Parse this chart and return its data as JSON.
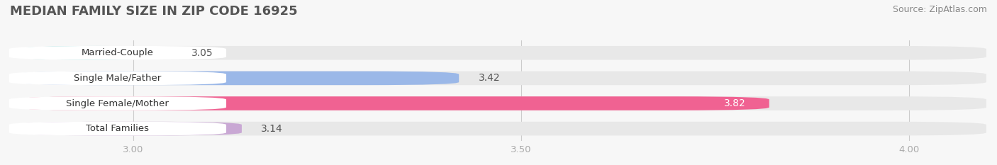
{
  "title": "MEDIAN FAMILY SIZE IN ZIP CODE 16925",
  "source": "Source: ZipAtlas.com",
  "categories": [
    "Married-Couple",
    "Single Male/Father",
    "Single Female/Mother",
    "Total Families"
  ],
  "values": [
    3.05,
    3.42,
    3.82,
    3.14
  ],
  "bar_colors": [
    "#6ecfcf",
    "#9bb8e8",
    "#f06292",
    "#c9a8d4"
  ],
  "bar_label_colors": [
    "#555555",
    "#555555",
    "#ffffff",
    "#555555"
  ],
  "xlim": [
    2.85,
    4.1
  ],
  "xticks": [
    3.0,
    3.5,
    4.0
  ],
  "xtick_labels": [
    "3.00",
    "3.50",
    "4.00"
  ],
  "background_color": "#f7f7f7",
  "bar_bg_color": "#e8e8e8",
  "label_bg_color": "#ffffff",
  "title_fontsize": 13,
  "source_fontsize": 9,
  "bar_label_fontsize": 10,
  "category_fontsize": 9.5,
  "tick_fontsize": 9.5,
  "bar_height": 0.55,
  "figsize": [
    14.06,
    2.33
  ],
  "dpi": 100
}
